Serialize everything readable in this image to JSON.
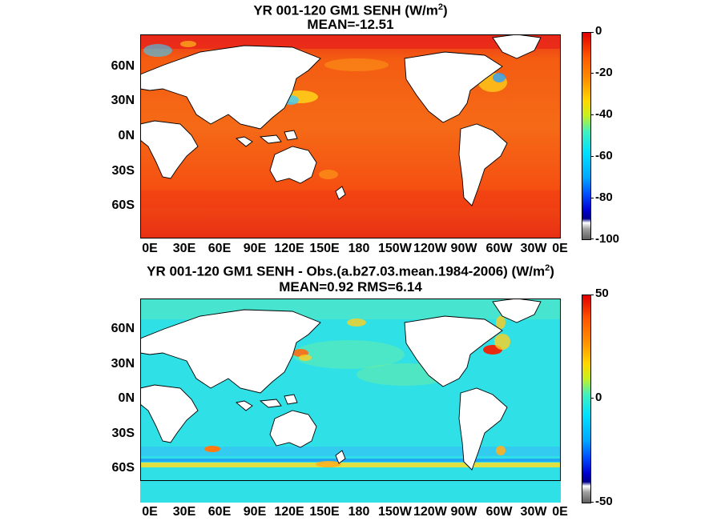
{
  "chart_data": [
    {
      "type": "heatmap",
      "title_prefix": "YR 001-120 GM1  SENH (W/m",
      "title_sup": "2",
      "title_suffix": ")",
      "subtitle": "MEAN=-12.51",
      "mean": -12.51,
      "colorbar": {
        "min": -100,
        "max": 0,
        "ticks": [
          "0",
          "-20",
          "-40",
          "-60",
          "-80",
          "-100"
        ]
      },
      "y_ticks": [
        "60N",
        "30N",
        "0N",
        "30S",
        "60S"
      ],
      "x_ticks": [
        "0E",
        "30E",
        "60E",
        "90E",
        "120E",
        "150E",
        "180",
        "150W",
        "120W",
        "90W",
        "60W",
        "30W",
        "0E"
      ],
      "background_ocean": "#f25a12"
    },
    {
      "type": "heatmap",
      "title_prefix": "YR 001-120 GM1 SENH - Obs.(a.b27.03.mean.1984-2006) (W/m",
      "title_sup": "2",
      "title_suffix": ")",
      "subtitle": "MEAN=0.92 RMS=6.14",
      "mean": 0.92,
      "rms": 6.14,
      "colorbar": {
        "min": -50,
        "max": 50,
        "ticks": [
          "50",
          "0",
          "-50"
        ]
      },
      "y_ticks": [
        "60N",
        "30N",
        "0N",
        "30S",
        "60S"
      ],
      "x_ticks": [
        "0E",
        "30E",
        "60E",
        "90E",
        "120E",
        "150E",
        "180",
        "150W",
        "120W",
        "90W",
        "60W",
        "30W",
        "0E"
      ],
      "background_ocean": "#2fe0e6"
    }
  ],
  "colors": {
    "land": "#ffffff",
    "coast": "#000000"
  }
}
